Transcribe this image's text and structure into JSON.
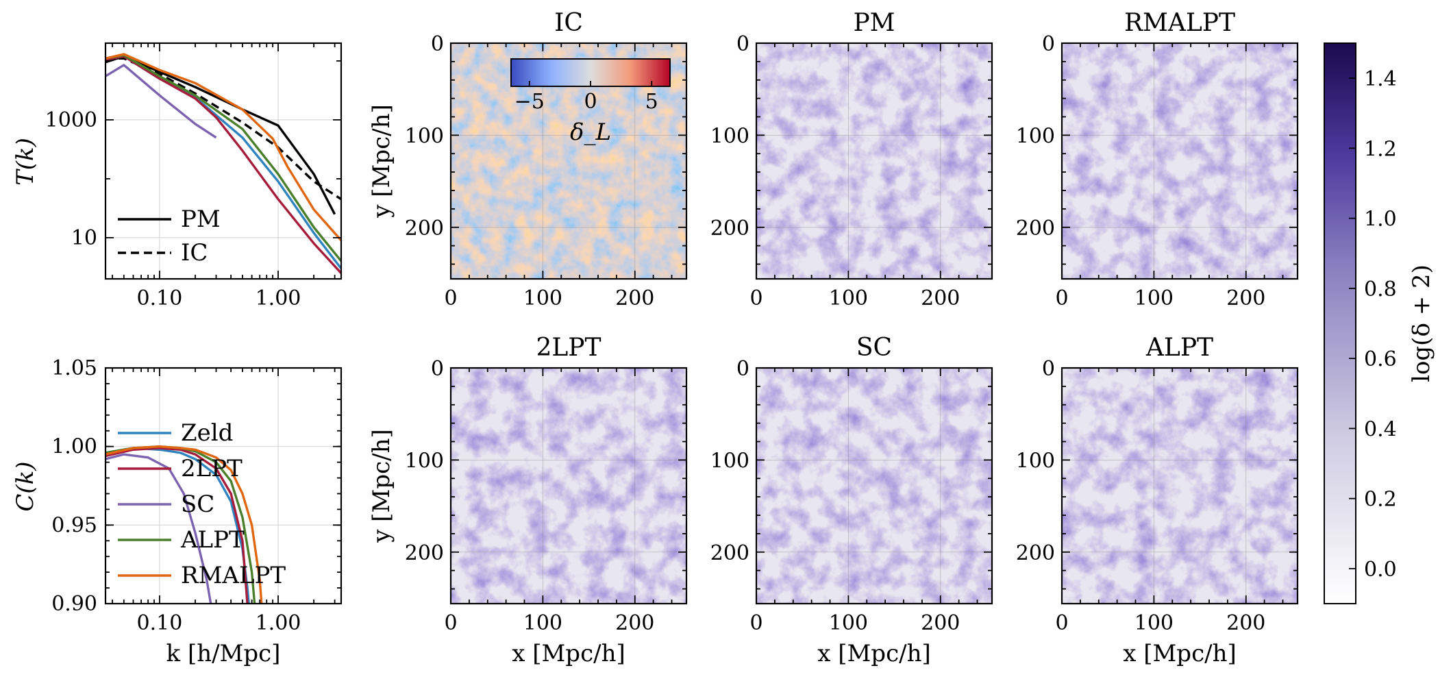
{
  "chart_data": [
    {
      "type": "line",
      "panel": "transfer",
      "ylabel": "T(k)",
      "xscale": "log",
      "yscale": "log",
      "xlim": [
        0.035,
        3.4
      ],
      "ylim": [
        2,
        20000
      ],
      "xticklabels": [
        "0.10",
        "1.00"
      ],
      "yticklabels": [
        "10",
        "1000"
      ],
      "legend": {
        "placement": "lower-left",
        "entries": [
          "PM",
          "IC"
        ]
      },
      "series": [
        {
          "name": "PM",
          "style": "solid",
          "color": "#000000",
          "x": [
            0.035,
            0.05,
            0.1,
            0.2,
            0.5,
            1.0,
            2.0,
            3.0
          ],
          "y": [
            9500,
            12000,
            6500,
            3600,
            1500,
            800,
            120,
            25
          ]
        },
        {
          "name": "IC",
          "style": "dashed",
          "color": "#000000",
          "x": [
            0.035,
            0.05,
            0.1,
            0.2,
            0.5,
            1.0,
            2.0,
            3.4
          ],
          "y": [
            11000,
            11000,
            6000,
            2800,
            900,
            340,
            90,
            45
          ]
        },
        {
          "name": "Zeld",
          "style": "solid",
          "color": "#2f84c0",
          "x": [
            0.035,
            0.05,
            0.1,
            0.2,
            0.5,
            1.0,
            2.0,
            3.4
          ],
          "y": [
            10500,
            12000,
            5000,
            2400,
            500,
            90,
            12,
            3
          ]
        },
        {
          "name": "2LPT",
          "style": "solid",
          "color": "#a61d3b",
          "x": [
            0.035,
            0.05,
            0.1,
            0.2,
            0.3,
            0.5,
            1.0,
            2.0,
            3.4
          ],
          "y": [
            10500,
            12000,
            5000,
            2300,
            1100,
            300,
            45,
            8,
            2.5
          ]
        },
        {
          "name": "SC",
          "style": "solid",
          "color": "#7b63b0",
          "x": [
            0.035,
            0.05,
            0.1,
            0.2,
            0.3
          ],
          "y": [
            5500,
            8500,
            2600,
            850,
            500
          ]
        },
        {
          "name": "ALPT",
          "style": "solid",
          "color": "#4a7f2c",
          "x": [
            0.035,
            0.05,
            0.1,
            0.2,
            0.5,
            1.0,
            2.0,
            3.4
          ],
          "y": [
            11000,
            12500,
            5500,
            2600,
            700,
            120,
            15,
            4
          ]
        },
        {
          "name": "RMALPT",
          "style": "solid",
          "color": "#e0660f",
          "x": [
            0.035,
            0.05,
            0.1,
            0.2,
            0.5,
            0.9,
            1.2,
            2.0,
            3.4
          ],
          "y": [
            11000,
            13000,
            7000,
            4200,
            1500,
            480,
            160,
            30,
            9
          ]
        }
      ]
    },
    {
      "type": "line",
      "panel": "correlation",
      "xlabel": "k [h/Mpc]",
      "ylabel": "C(k)",
      "xscale": "log",
      "xlim": [
        0.035,
        3.4
      ],
      "ylim": [
        0.9,
        1.05
      ],
      "xticklabels": [
        "0.10",
        "1.00"
      ],
      "yticklabels": [
        "0.90",
        "0.95",
        "1.00",
        "1.05"
      ],
      "legend": {
        "placement": "left",
        "entries": [
          "Zeld",
          "2LPT",
          "SC",
          "ALPT",
          "RMALPT"
        ]
      },
      "series": [
        {
          "name": "Zeld",
          "color": "#2f84c0",
          "x": [
            0.035,
            0.06,
            0.1,
            0.15,
            0.2,
            0.3,
            0.4,
            0.5,
            0.55,
            0.6
          ],
          "y": [
            0.996,
            0.999,
            0.998,
            0.996,
            0.992,
            0.982,
            0.965,
            0.935,
            0.91,
            0.88
          ]
        },
        {
          "name": "2LPT",
          "color": "#a61d3b",
          "x": [
            0.035,
            0.06,
            0.1,
            0.15,
            0.2,
            0.3,
            0.4,
            0.5,
            0.55,
            0.6
          ],
          "y": [
            0.994,
            0.998,
            0.999,
            0.998,
            0.995,
            0.986,
            0.97,
            0.94,
            0.9,
            0.87
          ]
        },
        {
          "name": "SC",
          "color": "#7b63b0",
          "x": [
            0.035,
            0.05,
            0.08,
            0.12,
            0.16,
            0.2,
            0.25,
            0.3
          ],
          "y": [
            0.992,
            0.995,
            0.993,
            0.986,
            0.97,
            0.945,
            0.915,
            0.88
          ]
        },
        {
          "name": "ALPT",
          "color": "#4a7f2c",
          "x": [
            0.035,
            0.06,
            0.1,
            0.15,
            0.2,
            0.3,
            0.4,
            0.5,
            0.6,
            0.65
          ],
          "y": [
            0.996,
            0.999,
            1.0,
            0.999,
            0.997,
            0.99,
            0.978,
            0.955,
            0.92,
            0.89
          ]
        },
        {
          "name": "RMALPT",
          "color": "#e0660f",
          "x": [
            0.035,
            0.06,
            0.1,
            0.15,
            0.2,
            0.3,
            0.4,
            0.5,
            0.6,
            0.7,
            0.75
          ],
          "y": [
            0.995,
            0.999,
            1.0,
            0.999,
            0.998,
            0.993,
            0.985,
            0.97,
            0.95,
            0.915,
            0.885
          ]
        }
      ]
    },
    {
      "type": "heatmap",
      "panels": [
        {
          "title": "IC",
          "colormap": "coolwarm",
          "ylabel": "y [Mpc/h]"
        },
        {
          "title": "PM",
          "colormap": "purples"
        },
        {
          "title": "RMALPT",
          "colormap": "purples"
        },
        {
          "title": "2LPT",
          "colormap": "purples",
          "xlabel": "x [Mpc/h]",
          "ylabel": "y [Mpc/h]"
        },
        {
          "title": "SC",
          "colormap": "purples",
          "xlabel": "x [Mpc/h]"
        },
        {
          "title": "ALPT",
          "colormap": "purples",
          "xlabel": "x [Mpc/h]"
        }
      ],
      "xlim": [
        0,
        256
      ],
      "ylim": [
        256,
        0
      ],
      "ticks": [
        "0",
        "100",
        "200"
      ],
      "inset_colorbar": {
        "label": "δ_L",
        "range": [
          -6.5,
          6.5
        ],
        "ticks": [
          "−5",
          "0",
          "5"
        ],
        "colors": [
          "#3b4cc0",
          "#dddddd",
          "#b40426"
        ]
      },
      "colorbar": {
        "label": "log(δ + 2)",
        "range": [
          -0.1,
          1.5
        ],
        "ticks": [
          "0.0",
          "0.2",
          "0.4",
          "0.6",
          "0.8",
          "1.0",
          "1.2",
          "1.4"
        ],
        "colors": [
          "#ffffff",
          "#b9b3d8",
          "#1c0a4e"
        ]
      }
    }
  ]
}
